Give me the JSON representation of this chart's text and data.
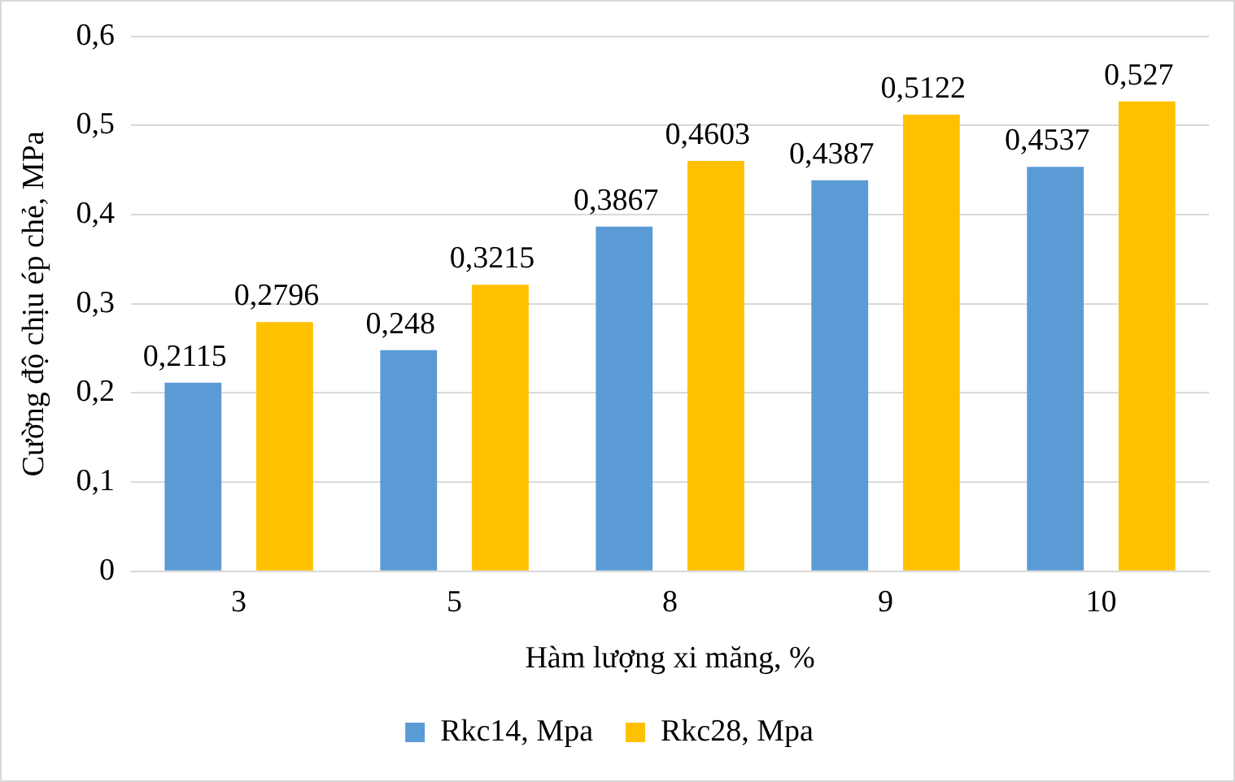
{
  "chart_data": {
    "type": "bar",
    "xlabel": "Hàm lượng xi măng, %",
    "ylabel": "Cường độ chịu ép chẻ, MPa",
    "categories": [
      "3",
      "5",
      "8",
      "9",
      "10"
    ],
    "series": [
      {
        "name": "Rkc14, Mpa",
        "color": "#5b9bd5",
        "values": [
          0.2115,
          0.248,
          0.3867,
          0.4387,
          0.4537
        ],
        "value_labels": [
          "0,2115",
          "0,248",
          "0,3867",
          "0,4387",
          "0,4537"
        ]
      },
      {
        "name": "Rkc28, Mpa",
        "color": "#ffc000",
        "values": [
          0.2796,
          0.3215,
          0.4603,
          0.5122,
          0.527
        ],
        "value_labels": [
          "0,2796",
          "0,3215",
          "0,4603",
          "0,5122",
          "0,527"
        ]
      }
    ],
    "ylim": [
      0,
      0.6
    ],
    "yticks": [
      {
        "value": 0,
        "label": "0"
      },
      {
        "value": 0.1,
        "label": "0,1"
      },
      {
        "value": 0.2,
        "label": "0,2"
      },
      {
        "value": 0.3,
        "label": "0,3"
      },
      {
        "value": 0.4,
        "label": "0,4"
      },
      {
        "value": 0.5,
        "label": "0,5"
      },
      {
        "value": 0.6,
        "label": "0,6"
      }
    ],
    "grid": "y",
    "legend": "bottom"
  }
}
